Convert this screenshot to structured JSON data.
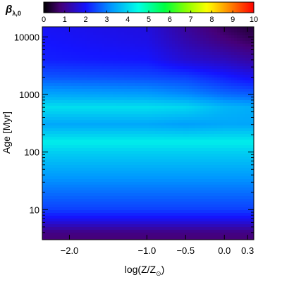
{
  "chart_data": {
    "type": "heatmap",
    "colorbar": {
      "label_main": "β",
      "label_sub": "λ,0",
      "range": [
        0,
        10
      ],
      "tick_labels": [
        "0",
        "1",
        "2",
        "3",
        "4",
        "5",
        "6",
        "7",
        "8",
        "9",
        "10"
      ],
      "colormap": "rainbow"
    },
    "x_axis": {
      "label_main": "log(Z/Z",
      "label_sub": "⊙",
      "label_close": ")",
      "range": [
        -2.35,
        0.38
      ],
      "ticks": [
        {
          "value": -2.0,
          "label": "−2.0"
        },
        {
          "value": -1.0,
          "label": "−1.0"
        },
        {
          "value": -0.5,
          "label": "−0.5"
        },
        {
          "value": 0.0,
          "label": "0.0"
        },
        {
          "value": 0.3,
          "label": "0.3"
        }
      ]
    },
    "y_axis": {
      "label": "Age [Myr]",
      "scale": "log",
      "range": [
        3,
        15000
      ],
      "ticks": [
        {
          "value": 10,
          "label": "10"
        },
        {
          "value": 100,
          "label": "100"
        },
        {
          "value": 1000,
          "label": "1000"
        },
        {
          "value": 10000,
          "label": "10000"
        }
      ]
    },
    "grid_x": [
      -2.3,
      -1.0,
      -0.5,
      0.0,
      0.3
    ],
    "grid_y": [
      3,
      4,
      5,
      7,
      10,
      30,
      100,
      150,
      300,
      600,
      1000,
      2000,
      4000,
      8000,
      15000
    ],
    "z": [
      [
        0.8,
        0.8,
        0.8,
        0.8,
        0.8
      ],
      [
        0.9,
        0.9,
        0.9,
        0.9,
        0.9
      ],
      [
        1.3,
        1.3,
        1.3,
        1.3,
        1.3
      ],
      [
        1.9,
        1.9,
        1.9,
        1.9,
        1.9
      ],
      [
        2.4,
        2.4,
        2.4,
        2.4,
        2.4
      ],
      [
        3.1,
        3.1,
        3.1,
        3.1,
        3.1
      ],
      [
        3.9,
        3.9,
        3.9,
        3.9,
        3.9
      ],
      [
        4.3,
        4.3,
        4.3,
        4.3,
        4.3
      ],
      [
        3.4,
        3.4,
        3.3,
        3.4,
        3.4
      ],
      [
        4.1,
        4.1,
        4.0,
        3.6,
        3.5
      ],
      [
        3.4,
        3.3,
        3.1,
        2.8,
        2.7
      ],
      [
        2.6,
        2.5,
        2.4,
        2.1,
        1.9
      ],
      [
        2.1,
        2.0,
        1.6,
        1.4,
        1.2
      ],
      [
        2.0,
        1.8,
        1.3,
        0.9,
        0.7
      ],
      [
        1.9,
        1.7,
        1.1,
        0.6,
        0.4
      ]
    ]
  }
}
